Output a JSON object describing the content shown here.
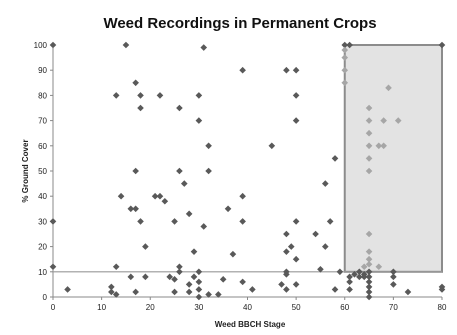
{
  "chart_data": {
    "type": "scatter",
    "title": "Weed Recordings in Permanent Crops",
    "xlabel": "Weed BBCH Stage",
    "ylabel": "% Ground Cover",
    "xlim": [
      0,
      80
    ],
    "ylim": [
      0,
      100
    ],
    "x_ticks": [
      0,
      10,
      20,
      30,
      40,
      50,
      60,
      70,
      80
    ],
    "y_ticks": [
      0,
      10,
      20,
      30,
      40,
      50,
      60,
      70,
      80,
      90,
      100
    ],
    "grid": false,
    "legend": "none",
    "colors": {
      "marker": "#595959",
      "marker_light": "#a6a6a6",
      "highlight_fill": "#e3e3e3",
      "highlight_stroke": "#8c8c8c",
      "axis": "#888888",
      "threshold_line": "#999999"
    },
    "annotations": {
      "threshold_line_y": 10,
      "highlight_region": {
        "x": [
          60,
          80
        ],
        "y": [
          10,
          100
        ]
      }
    },
    "points": [
      {
        "x": 0,
        "y": 100
      },
      {
        "x": 0,
        "y": 30
      },
      {
        "x": 0,
        "y": 12
      },
      {
        "x": 3,
        "y": 3
      },
      {
        "x": 12,
        "y": 4
      },
      {
        "x": 12,
        "y": 2
      },
      {
        "x": 13,
        "y": 80
      },
      {
        "x": 13,
        "y": 12
      },
      {
        "x": 13,
        "y": 1
      },
      {
        "x": 14,
        "y": 40
      },
      {
        "x": 15,
        "y": 100
      },
      {
        "x": 16,
        "y": 35
      },
      {
        "x": 16,
        "y": 8
      },
      {
        "x": 17,
        "y": 85
      },
      {
        "x": 17,
        "y": 50
      },
      {
        "x": 17,
        "y": 35
      },
      {
        "x": 17,
        "y": 2
      },
      {
        "x": 18,
        "y": 80
      },
      {
        "x": 18,
        "y": 75
      },
      {
        "x": 18,
        "y": 30
      },
      {
        "x": 19,
        "y": 20
      },
      {
        "x": 19,
        "y": 8
      },
      {
        "x": 21,
        "y": 40
      },
      {
        "x": 22,
        "y": 80
      },
      {
        "x": 22,
        "y": 40
      },
      {
        "x": 23,
        "y": 38
      },
      {
        "x": 24,
        "y": 8
      },
      {
        "x": 25,
        "y": 30
      },
      {
        "x": 25,
        "y": 7
      },
      {
        "x": 25,
        "y": 2
      },
      {
        "x": 26,
        "y": 75
      },
      {
        "x": 26,
        "y": 50
      },
      {
        "x": 26,
        "y": 12
      },
      {
        "x": 26,
        "y": 10
      },
      {
        "x": 27,
        "y": 45
      },
      {
        "x": 28,
        "y": 33
      },
      {
        "x": 28,
        "y": 5
      },
      {
        "x": 28,
        "y": 2
      },
      {
        "x": 29,
        "y": 18
      },
      {
        "x": 29,
        "y": 8
      },
      {
        "x": 30,
        "y": 80
      },
      {
        "x": 30,
        "y": 70
      },
      {
        "x": 30,
        "y": 10
      },
      {
        "x": 30,
        "y": 6
      },
      {
        "x": 30,
        "y": 3
      },
      {
        "x": 30,
        "y": 0
      },
      {
        "x": 31,
        "y": 99
      },
      {
        "x": 31,
        "y": 28
      },
      {
        "x": 32,
        "y": 60
      },
      {
        "x": 32,
        "y": 50
      },
      {
        "x": 32,
        "y": 1
      },
      {
        "x": 34,
        "y": 1
      },
      {
        "x": 35,
        "y": 7
      },
      {
        "x": 36,
        "y": 35
      },
      {
        "x": 37,
        "y": 17
      },
      {
        "x": 39,
        "y": 90
      },
      {
        "x": 39,
        "y": 40
      },
      {
        "x": 39,
        "y": 30
      },
      {
        "x": 39,
        "y": 6
      },
      {
        "x": 41,
        "y": 3
      },
      {
        "x": 45,
        "y": 60
      },
      {
        "x": 47,
        "y": 5
      },
      {
        "x": 48,
        "y": 90
      },
      {
        "x": 48,
        "y": 25
      },
      {
        "x": 48,
        "y": 18
      },
      {
        "x": 48,
        "y": 10
      },
      {
        "x": 48,
        "y": 9
      },
      {
        "x": 48,
        "y": 3
      },
      {
        "x": 49,
        "y": 20
      },
      {
        "x": 50,
        "y": 90
      },
      {
        "x": 50,
        "y": 80
      },
      {
        "x": 50,
        "y": 70
      },
      {
        "x": 50,
        "y": 30
      },
      {
        "x": 50,
        "y": 15
      },
      {
        "x": 50,
        "y": 5
      },
      {
        "x": 54,
        "y": 25
      },
      {
        "x": 55,
        "y": 11
      },
      {
        "x": 56,
        "y": 45
      },
      {
        "x": 56,
        "y": 20
      },
      {
        "x": 57,
        "y": 30
      },
      {
        "x": 58,
        "y": 55
      },
      {
        "x": 58,
        "y": 3
      },
      {
        "x": 59,
        "y": 10
      },
      {
        "x": 60,
        "y": 100
      },
      {
        "x": 60,
        "y": 98
      },
      {
        "x": 60,
        "y": 95
      },
      {
        "x": 60,
        "y": 90
      },
      {
        "x": 60,
        "y": 85
      },
      {
        "x": 61,
        "y": 100
      },
      {
        "x": 61,
        "y": 8
      },
      {
        "x": 61,
        "y": 6
      },
      {
        "x": 61,
        "y": 3
      },
      {
        "x": 62,
        "y": 9
      },
      {
        "x": 63,
        "y": 10
      },
      {
        "x": 63,
        "y": 8
      },
      {
        "x": 64,
        "y": 12
      },
      {
        "x": 64,
        "y": 9
      },
      {
        "x": 64,
        "y": 8
      },
      {
        "x": 65,
        "y": 75
      },
      {
        "x": 65,
        "y": 70
      },
      {
        "x": 65,
        "y": 65
      },
      {
        "x": 65,
        "y": 60
      },
      {
        "x": 65,
        "y": 55
      },
      {
        "x": 65,
        "y": 50
      },
      {
        "x": 65,
        "y": 25
      },
      {
        "x": 65,
        "y": 18
      },
      {
        "x": 65,
        "y": 15
      },
      {
        "x": 65,
        "y": 13
      },
      {
        "x": 65,
        "y": 10
      },
      {
        "x": 65,
        "y": 8
      },
      {
        "x": 65,
        "y": 6
      },
      {
        "x": 65,
        "y": 4
      },
      {
        "x": 65,
        "y": 2
      },
      {
        "x": 65,
        "y": 0
      },
      {
        "x": 67,
        "y": 60
      },
      {
        "x": 67,
        "y": 12
      },
      {
        "x": 68,
        "y": 70
      },
      {
        "x": 68,
        "y": 60
      },
      {
        "x": 69,
        "y": 83
      },
      {
        "x": 70,
        "y": 10
      },
      {
        "x": 70,
        "y": 8
      },
      {
        "x": 70,
        "y": 5
      },
      {
        "x": 71,
        "y": 70
      },
      {
        "x": 73,
        "y": 2
      },
      {
        "x": 80,
        "y": 100
      },
      {
        "x": 80,
        "y": 4
      },
      {
        "x": 80,
        "y": 3
      }
    ]
  }
}
